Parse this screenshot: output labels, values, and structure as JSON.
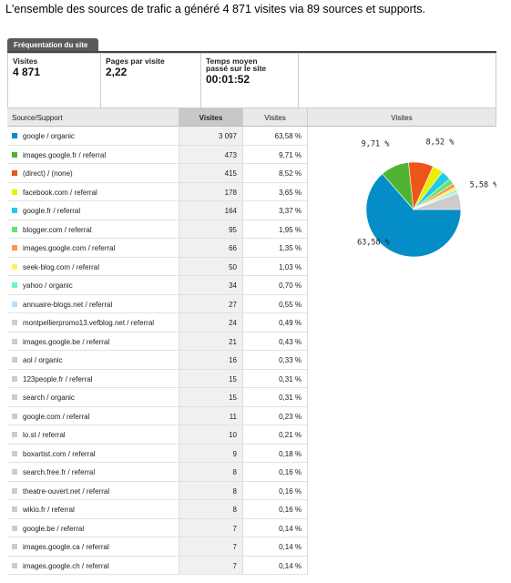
{
  "title": "L'ensemble des sources de trafic a généré 4 871 visites via 89 sources et supports.",
  "tab": "Fréquentation du site",
  "summary": [
    {
      "label": "Visites",
      "value": "4 871"
    },
    {
      "label": "Pages par visite",
      "value": "2,22"
    },
    {
      "label": "Temps moyen passé sur le site",
      "value": "00:01:52"
    }
  ],
  "table": {
    "headers": [
      "Source/Support",
      "Visites",
      "Visites",
      "Visites"
    ],
    "rows": [
      {
        "color": "#058dc7",
        "source": "google / organic",
        "visits": "3 097",
        "percent": "63,58 %"
      },
      {
        "color": "#50b432",
        "source": "images.google.fr / referral",
        "visits": "473",
        "percent": "9,71 %"
      },
      {
        "color": "#ed561b",
        "source": "(direct) / (none)",
        "visits": "415",
        "percent": "8,52 %"
      },
      {
        "color": "#edef00",
        "source": "facebook.com / referral",
        "visits": "178",
        "percent": "3,65 %"
      },
      {
        "color": "#24cbe5",
        "source": "google.fr / referral",
        "visits": "164",
        "percent": "3,37 %"
      },
      {
        "color": "#64e572",
        "source": "blogger.com / referral",
        "visits": "95",
        "percent": "1,95 %"
      },
      {
        "color": "#ff9655",
        "source": "images.google.com / referral",
        "visits": "66",
        "percent": "1,35 %"
      },
      {
        "color": "#fff263",
        "source": "seek-blog.com / referral",
        "visits": "50",
        "percent": "1,03 %"
      },
      {
        "color": "#6af9c4",
        "source": "yahoo / organic",
        "visits": "34",
        "percent": "0,70 %"
      },
      {
        "color": "#b2deff",
        "source": "annuaire-blogs.net / referral",
        "visits": "27",
        "percent": "0,55 %"
      },
      {
        "color": "#cccccc",
        "source": "montpellierpromo13.vefblog.net / referral",
        "visits": "24",
        "percent": "0,49 %"
      },
      {
        "color": "#cccccc",
        "source": "images.google.be / referral",
        "visits": "21",
        "percent": "0,43 %"
      },
      {
        "color": "#cccccc",
        "source": "aol / organic",
        "visits": "16",
        "percent": "0,33 %"
      },
      {
        "color": "#cccccc",
        "source": "123people.fr / referral",
        "visits": "15",
        "percent": "0,31 %"
      },
      {
        "color": "#cccccc",
        "source": "search / organic",
        "visits": "15",
        "percent": "0,31 %"
      },
      {
        "color": "#cccccc",
        "source": "google.com / referral",
        "visits": "11",
        "percent": "0,23 %"
      },
      {
        "color": "#cccccc",
        "source": "lo.st / referral",
        "visits": "10",
        "percent": "0,21 %"
      },
      {
        "color": "#cccccc",
        "source": "boxartist.com / referral",
        "visits": "9",
        "percent": "0,18 %"
      },
      {
        "color": "#cccccc",
        "source": "search.free.fr / referral",
        "visits": "8",
        "percent": "0,16 %"
      },
      {
        "color": "#cccccc",
        "source": "theatre-ouvert.net / referral",
        "visits": "8",
        "percent": "0,16 %"
      },
      {
        "color": "#cccccc",
        "source": "wikio.fr / referral",
        "visits": "8",
        "percent": "0,16 %"
      },
      {
        "color": "#cccccc",
        "source": "google.be / referral",
        "visits": "7",
        "percent": "0,14 %"
      },
      {
        "color": "#cccccc",
        "source": "images.google.ca / referral",
        "visits": "7",
        "percent": "0,14 %"
      },
      {
        "color": "#cccccc",
        "source": "images.google.ch / referral",
        "visits": "7",
        "percent": "0,14 %"
      }
    ]
  },
  "pie": {
    "values": [
      63.58,
      9.71,
      8.52,
      3.65,
      3.37,
      1.95,
      1.35,
      1.03,
      0.7,
      0.55,
      5.58
    ],
    "value_labels": [
      "63,58 %",
      "9,71 %",
      "8,52 %",
      null,
      null,
      null,
      null,
      null,
      null,
      null,
      "5,58 %"
    ],
    "colors": [
      "#058dc7",
      "#50b432",
      "#ed561b",
      "#edef00",
      "#24cbe5",
      "#64e572",
      "#ff9655",
      "#fff263",
      "#6af9c4",
      "#b2deff",
      "#cccccc"
    ]
  }
}
